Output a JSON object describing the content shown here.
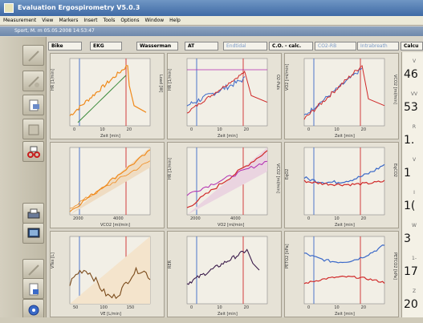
{
  "window": {
    "title": "Evaluation Ergospirometry V5.0.3"
  },
  "menu": [
    "Measurement",
    "View",
    "Markers",
    "Insert",
    "Tools",
    "Options",
    "Window",
    "Help"
  ],
  "document": {
    "title": "Sport, M. m 05.05.2008 14:53:47"
  },
  "tabs": [
    {
      "label": "Bike",
      "style": "normal"
    },
    {
      "label": "EKG",
      "style": "normal"
    },
    {
      "label": "Wasserman",
      "style": "normal"
    },
    {
      "label": "AT",
      "style": "normal"
    },
    {
      "label": "Endtidal",
      "style": "blue"
    },
    {
      "label": "C.O. - calc.",
      "style": "normal"
    },
    {
      "label": "CO2-RB",
      "style": "blue"
    },
    {
      "label": "Intrabreath",
      "style": "blue"
    },
    {
      "label": "Calcu",
      "style": "normal"
    }
  ],
  "panels": [
    {
      "name": "hr-vo2-time",
      "ylabel": "HR [1/min]",
      "ylabel2": "Load [W]",
      "xlabel": "Zeit [min]",
      "xticks": [
        "0",
        "10",
        "20"
      ]
    },
    {
      "name": "hr-vo2pulse-time",
      "ylabel": "HR [1/min]",
      "ylabel2": "O2-Puls",
      "xlabel": "Zeit [min]",
      "xticks": [
        "0",
        "10",
        "20"
      ]
    },
    {
      "name": "vo2-vco2-time",
      "ylabel": "VO2 [ml/min]",
      "ylabel2": "VCO2 [ml/min]",
      "xlabel": "Zeit [min]",
      "xticks": [
        "0",
        "10",
        "20"
      ]
    },
    {
      "name": "vo2-load",
      "ylabel": "",
      "ylabel2": "",
      "xlabel": "VCO2 [ml/min]",
      "xticks": [
        "2000",
        "4000"
      ]
    },
    {
      "name": "hr-vo2",
      "ylabel": "HR [1/min]",
      "ylabel2": "VCO2 [ml/min]",
      "xlabel": "VO2 [ml/min]",
      "xticks": [
        "2000",
        "4000"
      ]
    },
    {
      "name": "eqo2-eqco2",
      "ylabel": "EqO2",
      "ylabel2": "EqCO2",
      "xlabel": "Zeit [min]",
      "xticks": [
        "0",
        "10",
        "20"
      ]
    },
    {
      "name": "vt-ve",
      "ylabel": "VTex [L]",
      "ylabel2": "",
      "xlabel": "VE [L/min]",
      "xticks": [
        "50",
        "100",
        "150"
      ]
    },
    {
      "name": "rer-time",
      "ylabel": "RER",
      "ylabel2": "",
      "xlabel": "Zeit [min]",
      "xticks": [
        "0",
        "10",
        "20"
      ]
    },
    {
      "name": "peto2-petco2",
      "ylabel": "PETO2 [kPa]",
      "ylabel2": "PETCO2 [kPa]",
      "xlabel": "Zeit [min]",
      "xticks": [
        "0",
        "10",
        "20"
      ]
    }
  ],
  "summary": [
    {
      "label": "V",
      "value": "46"
    },
    {
      "label": "VV",
      "value": "53"
    },
    {
      "label": "R",
      "value": "1."
    },
    {
      "label": "V",
      "value": "1"
    },
    {
      "label": "I",
      "value": "1("
    },
    {
      "label": "W",
      "value": "3"
    },
    {
      "label": "1-",
      "value": "17"
    },
    {
      "label": "Z",
      "value": "20"
    }
  ],
  "colors": {
    "orange": "#f08a1c",
    "blue": "#3a68c8",
    "red": "#d02a2a",
    "green": "#3a8a3a",
    "purple": "#b02ab0",
    "dark": "#3a1a4a"
  }
}
